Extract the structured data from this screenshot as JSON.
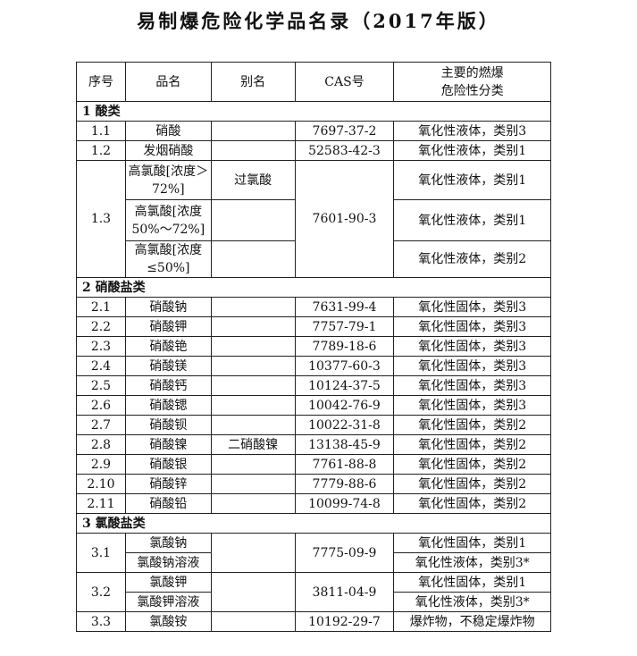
{
  "title": "易制爆危险化学品名录（2017年版）",
  "header": [
    "序号",
    "品名",
    "别名",
    "CAS号",
    "主要的燃爆危险性分类"
  ],
  "header_hazard_lines": [
    "主要的燃爆",
    "危险性分类"
  ],
  "s1": {
    "title": "1  酸类",
    "r1": [
      "1.1",
      "硝酸",
      "",
      "7697-37-2",
      "氧化性液体，类别3"
    ],
    "r2": [
      "1.2",
      "发烟硝酸",
      "",
      "52583-42-3",
      "氧化性液体，类别1"
    ],
    "r3": {
      "no": "1.3",
      "cas": "7601-90-3",
      "items": [
        {
          "name": "高氯酸[浓度＞72%]",
          "alias": "过氯酸",
          "hazard": "氧化性液体，类别1"
        },
        {
          "name": "高氯酸[浓度50%～72%]",
          "alias": "",
          "hazard": "氧化性液体，类别1"
        },
        {
          "name": "高氯酸[浓度≤50%]",
          "alias": "",
          "hazard": "氧化性液体，类别2"
        }
      ]
    }
  },
  "s2": {
    "title": "2  硝酸盐类",
    "rows": [
      [
        "2.1",
        "硝酸钠",
        "",
        "7631-99-4",
        "氧化性固体，类别3"
      ],
      [
        "2.2",
        "硝酸钾",
        "",
        "7757-79-1",
        "氧化性固体，类别3"
      ],
      [
        "2.3",
        "硝酸铯",
        "",
        "7789-18-6",
        "氧化性固体，类别3"
      ],
      [
        "2.4",
        "硝酸镁",
        "",
        "10377-60-3",
        "氧化性固体，类别3"
      ],
      [
        "2.5",
        "硝酸钙",
        "",
        "10124-37-5",
        "氧化性固体，类别3"
      ],
      [
        "2.6",
        "硝酸锶",
        "",
        "10042-76-9",
        "氧化性固体，类别3"
      ],
      [
        "2.7",
        "硝酸钡",
        "",
        "10022-31-8",
        "氧化性固体，类别2"
      ],
      [
        "2.8",
        "硝酸镍",
        "二硝酸镍",
        "13138-45-9",
        "氧化性固体，类别2"
      ],
      [
        "2.9",
        "硝酸银",
        "",
        "7761-88-8",
        "氧化性固体，类别2"
      ],
      [
        "2.10",
        "硝酸锌",
        "",
        "7779-88-6",
        "氧化性固体，类别2"
      ],
      [
        "2.11",
        "硝酸铅",
        "",
        "10099-74-8",
        "氧化性固体，类别2"
      ]
    ]
  },
  "s3": {
    "title": "3  氯酸盐类",
    "r1": {
      "no": "3.1",
      "cas": "7775-09-9",
      "items": [
        {
          "name": "氯酸钠",
          "hazard": "氧化性固体，类别1"
        },
        {
          "name": "氯酸钠溶液",
          "hazard": "氧化性液体，类别3*"
        }
      ]
    },
    "r2": {
      "no": "3.2",
      "cas": "3811-04-9",
      "items": [
        {
          "name": "氯酸钾",
          "hazard": "氧化性固体，类别1"
        },
        {
          "name": "氯酸钾溶液",
          "hazard": "氧化性液体，类别3*"
        }
      ]
    },
    "r3": [
      "3.3",
      "氯酸铵",
      "",
      "10192-29-7",
      "爆炸物，不稳定爆炸物"
    ]
  }
}
